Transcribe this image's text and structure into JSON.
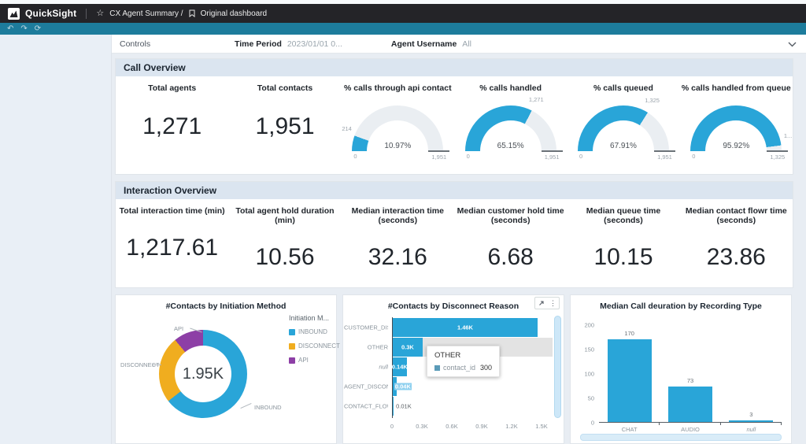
{
  "app": {
    "brand": "QuickSight",
    "breadcrumb": "CX Agent Summary /",
    "dashboard_name": "Original dashboard"
  },
  "icons": {
    "star": "☆",
    "undo": "↶",
    "redo": "↷",
    "reset": "⟳",
    "kebab": "⋮"
  },
  "colors": {
    "accent_blue": "#29a5d8",
    "orange": "#f0ad1f",
    "purple": "#8d3fa6",
    "teal_bar": "#1d7c9c",
    "gauge_track": "#eaeef2"
  },
  "controls": {
    "title": "Controls",
    "fields": [
      {
        "label": "Time Period",
        "value": "2023/01/01 0..."
      },
      {
        "label": "Agent Username",
        "value": "All"
      }
    ]
  },
  "call_overview": {
    "title": "Call Overview",
    "kpis": [
      {
        "label": "Total agents",
        "value": "1,271"
      },
      {
        "label": "Total contacts",
        "value": "1,951"
      }
    ],
    "gauges": [
      {
        "label": "% calls through api contact",
        "display": "10.97%",
        "pct": 10.97,
        "min": "0",
        "max": "1,951",
        "pointer_label": "214"
      },
      {
        "label": "% calls handled",
        "display": "65.15%",
        "pct": 65.15,
        "min": "0",
        "max": "1,951",
        "pointer_label": "1,271"
      },
      {
        "label": "% calls queued",
        "display": "67.91%",
        "pct": 67.91,
        "min": "0",
        "max": "1,951",
        "pointer_label": "1,325"
      },
      {
        "label": "% calls handled from queue",
        "display": "95.92%",
        "pct": 95.92,
        "min": "0",
        "max": "1,325",
        "pointer_label": "1..."
      }
    ]
  },
  "interaction_overview": {
    "title": "Interaction Overview",
    "kpis": [
      {
        "label": "Total interaction time (min)",
        "value": "1,217.61"
      },
      {
        "label": "Total agent hold duration (min)",
        "value": "10.56"
      },
      {
        "label": "Median interaction time (seconds)",
        "value": "32.16"
      },
      {
        "label": "Median customer hold time (seconds)",
        "value": "6.68"
      },
      {
        "label": "Median queue time (seconds)",
        "value": "10.15"
      },
      {
        "label": "Median contact flowr time (seconds)",
        "value": "23.86"
      }
    ]
  },
  "chart_data": [
    {
      "type": "pie",
      "title": "#Contacts by Initiation Method",
      "center_label": "1.95K",
      "legend_title": "Initiation M...",
      "legend_position": "right",
      "series": [
        {
          "name": "INBOUND",
          "value": 1258,
          "color": "#29a5d8"
        },
        {
          "name": "DISCONNECT",
          "value": 479,
          "color": "#f0ad1f"
        },
        {
          "name": "API",
          "value": 214,
          "color": "#8d3fa6"
        }
      ]
    },
    {
      "type": "bar",
      "orientation": "horizontal",
      "title": "#Contacts by Disconnect Reason",
      "categories": [
        "CUSTOMER_DISC...",
        "OTHER",
        "null",
        "AGENT_DISCONN...",
        "CONTACT_FLOW_..."
      ],
      "values": [
        1460,
        300,
        140,
        40,
        10
      ],
      "value_labels": [
        "1.46K",
        "0.3K",
        "0.14K",
        "0.04K",
        "0.01K"
      ],
      "xlim": [
        0,
        1500
      ],
      "x_ticks": [
        "0",
        "0.3K",
        "0.6K",
        "0.9K",
        "1.2K",
        "1.5K"
      ],
      "highlighted_category": "OTHER",
      "tooltip": {
        "title": "OTHER",
        "field": "contact_id",
        "value": "300"
      }
    },
    {
      "type": "bar",
      "orientation": "vertical",
      "title": "Median Call deuration by Recording Type",
      "categories": [
        "CHAT",
        "AUDIO",
        "null"
      ],
      "values": [
        170,
        73,
        3
      ],
      "value_labels": [
        "170",
        "73",
        "3"
      ],
      "ylim": [
        0,
        200
      ],
      "y_ticks": [
        "200",
        "150",
        "100",
        "50",
        "0"
      ]
    }
  ]
}
